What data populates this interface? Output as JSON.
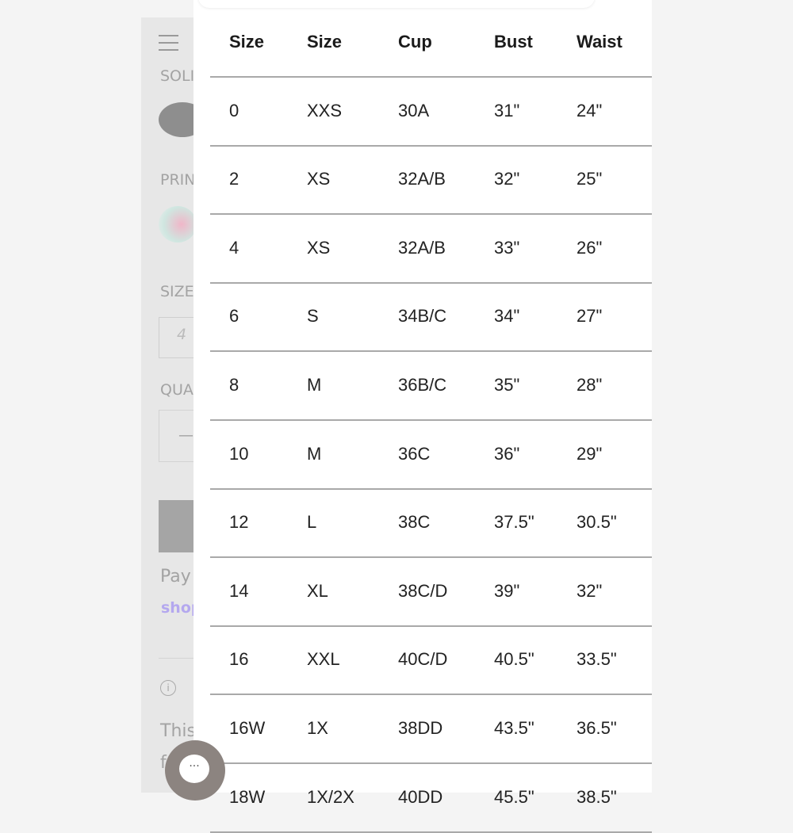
{
  "background_page": {
    "sold_label": "SOLI",
    "print_label": "PRIN",
    "size_label": "SIZE",
    "size_option": "4",
    "quantity_label": "QUA",
    "quantity_minus": "—",
    "pay_text": "Pay",
    "shop_text": "shop",
    "this_text": "This",
    "f_text": "f"
  },
  "size_chart": {
    "headers": [
      "Size",
      "Size",
      "Cup",
      "Bust",
      "Waist"
    ],
    "rows": [
      [
        "0",
        "XXS",
        "30A",
        "31\"",
        "24\""
      ],
      [
        "2",
        "XS",
        "32A/B",
        "32\"",
        "25\""
      ],
      [
        "4",
        "XS",
        "32A/B",
        "33\"",
        "26\""
      ],
      [
        "6",
        "S",
        "34B/C",
        "34\"",
        "27\""
      ],
      [
        "8",
        "M",
        "36B/C",
        "35\"",
        "28\""
      ],
      [
        "10",
        "M",
        "36C",
        "36\"",
        "29\""
      ],
      [
        "12",
        "L",
        "38C",
        "37.5\"",
        "30.5\""
      ],
      [
        "14",
        "XL",
        "38C/D",
        "39\"",
        "32\""
      ],
      [
        "16",
        "XXL",
        "40C/D",
        "40.5\"",
        "33.5\""
      ],
      [
        "16W",
        "1X",
        "38DD",
        "43.5\"",
        "36.5\""
      ],
      [
        "18W",
        "1X/2X",
        "40DD",
        "45.5\"",
        "38.5\""
      ]
    ]
  },
  "chat": {
    "icon": "chat-bubble-icon",
    "label": "···"
  },
  "colors": {
    "accent_chat": "#8c8480",
    "shop_link": "#b4a8ef"
  }
}
